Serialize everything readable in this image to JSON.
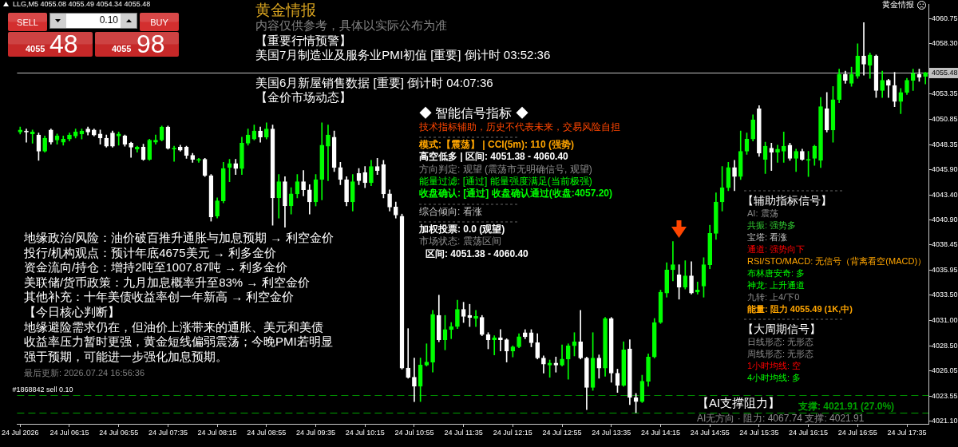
{
  "chart_data": {
    "type": "candlestick",
    "title": "黄金情报",
    "subtitle": "内容仅供参考，具体以实际公布为准",
    "categories": [
      "24 Jul 2026",
      null,
      null,
      null,
      null,
      null,
      null,
      null,
      "24 Jul 06:15",
      null,
      null,
      null,
      null,
      null,
      null,
      null,
      "24 Jul 06:55",
      null,
      null,
      null,
      null,
      null,
      null,
      null,
      "24 Jul 07:35",
      null,
      null,
      null,
      null,
      null,
      null,
      null,
      "24 Jul 08:15",
      null,
      null,
      null,
      null,
      null,
      null,
      null,
      "24 Jul 08:55",
      null,
      null,
      null,
      null,
      null,
      null,
      null,
      "24 Jul 09:35",
      null,
      null,
      null,
      null,
      null,
      null,
      null,
      "24 Jul 10:15",
      null,
      null,
      null,
      null,
      null,
      null,
      null,
      "24 Jul 10:55",
      null,
      null,
      null,
      null,
      null,
      null,
      null,
      "24 Jul 11:35",
      null,
      null,
      null,
      null,
      null,
      null,
      null,
      "24 Jul 12:15",
      null,
      null,
      null,
      null,
      null,
      null,
      null,
      "24 Jul 12:55",
      null,
      null,
      null,
      null,
      null,
      null,
      null,
      "24 Jul 13:35",
      null,
      null,
      null,
      null,
      null,
      null,
      null,
      "24 Jul 14:15",
      null,
      null,
      null,
      null,
      null,
      null,
      null,
      "24 Jul 14:55",
      null,
      null,
      null,
      null,
      null,
      null,
      null,
      "24 Jul 15:35",
      null,
      null,
      null,
      null,
      null,
      null,
      null,
      "24 Jul 16:15",
      null,
      null,
      null,
      null,
      null,
      null,
      null,
      "24 Jul 16:55",
      null,
      null,
      null,
      null,
      null,
      null,
      null,
      "24 Jul 17:35",
      null,
      null,
      null
    ],
    "ohlc": [
      [
        4049.6,
        4050.1,
        4049.4,
        4049.8
      ],
      [
        4049.7,
        4049.9,
        4048.6,
        4049.6
      ],
      [
        4049.4,
        4049.8,
        4048.5,
        4049.6
      ],
      [
        4049.3,
        4049.5,
        4046.8,
        4047.7
      ],
      [
        4047.7,
        4049.2,
        4047.6,
        4049.0
      ],
      [
        4049.8,
        4049.9,
        4048.4,
        4048.6
      ],
      [
        4048.8,
        4049.4,
        4048.4,
        4049.2
      ],
      [
        4048.6,
        4049.2,
        4048.3,
        4048.9
      ],
      [
        4048.9,
        4049.5,
        4048.7,
        4049.3
      ],
      [
        4049.2,
        4049.9,
        4049.0,
        4049.6
      ],
      [
        4049.4,
        4049.9,
        4048.9,
        4049.7
      ],
      [
        4049.9,
        4050.1,
        4049.3,
        4049.6
      ],
      [
        4049.8,
        4049.9,
        4049.2,
        4049.3
      ],
      [
        4049.4,
        4049.8,
        4048.4,
        4049.0
      ],
      [
        4049.0,
        4049.3,
        4048.1,
        4048.2
      ],
      [
        4049.5,
        4049.7,
        4048.1,
        4048.2
      ],
      [
        4049.2,
        4049.6,
        4048.3,
        4049.4
      ],
      [
        4049.2,
        4049.3,
        4048.2,
        4048.4
      ],
      [
        4048.5,
        4048.6,
        4047.1,
        4048.1
      ],
      [
        4047.9,
        4048.2,
        4047.6,
        4048.1
      ],
      [
        4048.1,
        4048.4,
        4046.8,
        4046.9
      ],
      [
        4046.9,
        4048.9,
        4046.8,
        4048.8
      ],
      [
        4048.6,
        4049.3,
        4048.4,
        4048.8
      ],
      [
        4048.8,
        4050.2,
        4048.7,
        4050.1
      ],
      [
        4050.1,
        4050.2,
        4047.9,
        4048.0
      ],
      [
        4047.9,
        4048.2,
        4046.7,
        4048.0
      ],
      [
        4048.1,
        4048.3,
        4047.7,
        4047.8
      ],
      [
        4048.1,
        4048.2,
        4047.0,
        4047.3
      ],
      [
        4047.3,
        4047.5,
        4046.6,
        4046.9
      ],
      [
        4046.8,
        4047.0,
        4046.6,
        4046.9
      ],
      [
        4046.9,
        4047.0,
        4045.2,
        4045.3
      ],
      [
        4045.3,
        4045.4,
        4040.8,
        4041.2
      ],
      [
        4041.3,
        4043.1,
        4041.1,
        4042.8
      ],
      [
        4042.8,
        4046.6,
        4042.6,
        4046.0
      ],
      [
        4046.1,
        4046.9,
        4044.7,
        4046.5
      ],
      [
        4046.5,
        4046.9,
        4045.4,
        4046.0
      ],
      [
        4046.0,
        4049.1,
        4045.4,
        4048.5
      ],
      [
        4048.5,
        4049.9,
        4048.3,
        4049.3
      ],
      [
        4048.9,
        4050.3,
        4048.8,
        4049.7
      ],
      [
        4049.7,
        4050.1,
        4048.6,
        4049.1
      ],
      [
        4049.1,
        4050.5,
        4048.9,
        4049.9
      ],
      [
        4049.9,
        4050.3,
        4040.4,
        4043.1
      ],
      [
        4043.1,
        4045.4,
        4041.1,
        4044.7
      ],
      [
        4044.7,
        4045.2,
        4040.2,
        4042.3
      ],
      [
        4042.3,
        4044.1,
        4041.5,
        4043.5
      ],
      [
        4043.5,
        4045.4,
        4043.1,
        4044.7
      ],
      [
        4044.7,
        4045.8,
        4043.3,
        4043.9
      ],
      [
        4043.9,
        4044.4,
        4041.5,
        4042.7
      ],
      [
        4042.7,
        4045.4,
        4042.3,
        4044.9
      ],
      [
        4044.9,
        4050.5,
        4042.9,
        4048.3
      ],
      [
        4048.2,
        4050.3,
        4044.8,
        4049.3
      ],
      [
        4049.1,
        4049.7,
        4045.7,
        4046.1
      ],
      [
        4046.1,
        4046.6,
        4044.4,
        4044.9
      ],
      [
        4044.9,
        4045.2,
        4042.3,
        4042.7
      ],
      [
        4042.7,
        4045.4,
        4041.8,
        4044.7
      ],
      [
        4045.5,
        4046.0,
        4044.4,
        4044.8
      ],
      [
        4045.6,
        4046.2,
        4044.1,
        4044.6
      ],
      [
        4044.6,
        4046.8,
        4044.3,
        4046.2
      ],
      [
        4046.2,
        4047.0,
        4045.4,
        4045.8
      ],
      [
        4046.4,
        4046.8,
        4043.1,
        4043.5
      ],
      [
        4043.5,
        4043.9,
        4041.8,
        4042.2
      ],
      [
        4042.2,
        4042.7,
        4041.1,
        4041.4
      ],
      [
        4041.3,
        4041.5,
        4026.2,
        4026.3
      ],
      [
        4026.3,
        4030.2,
        4025.3,
        4025.4
      ],
      [
        4025.4,
        4027.3,
        4023.0,
        4024.5
      ],
      [
        4024.5,
        4027.3,
        4023.0,
        4026.6
      ],
      [
        4026.6,
        4028.7,
        4026.5,
        4026.9
      ],
      [
        4026.9,
        4032.0,
        4025.9,
        4031.6
      ],
      [
        4031.5,
        4033.5,
        4028.9,
        4029.1
      ],
      [
        4029.1,
        4031.5,
        4028.1,
        4030.1
      ],
      [
        4030.1,
        4030.8,
        4029.2,
        4030.4
      ],
      [
        4030.4,
        4033.0,
        4030.2,
        4032.1
      ],
      [
        4032.1,
        4032.8,
        4030.8,
        4031.4
      ],
      [
        4031.5,
        4032.6,
        4030.4,
        4031.3
      ],
      [
        4031.2,
        4032.0,
        4030.4,
        4031.4
      ],
      [
        4031.3,
        4031.5,
        4029.5,
        4029.6
      ],
      [
        4029.6,
        4029.8,
        4028.2,
        4029.1
      ],
      [
        4029.1,
        4029.5,
        4027.6,
        4029.3
      ],
      [
        4029.3,
        4030.1,
        4028.0,
        4029.1
      ],
      [
        4029.1,
        4029.2,
        4026.9,
        4028.0
      ],
      [
        4028.0,
        4028.5,
        4027.4,
        4028.4
      ],
      [
        4028.4,
        4029.7,
        4028.3,
        4029.4
      ],
      [
        4029.8,
        4030.1,
        4029.2,
        4029.4
      ],
      [
        4029.8,
        4030.1,
        4028.4,
        4028.8
      ],
      [
        4028.8,
        4029.7,
        4027.2,
        4027.3
      ],
      [
        4027.3,
        4027.5,
        4025.8,
        4026.7
      ],
      [
        4026.6,
        4027.1,
        4025.4,
        4026.8
      ],
      [
        4026.8,
        4027.4,
        4025.9,
        4026.6
      ],
      [
        4026.6,
        4028.6,
        4026.5,
        4027.2
      ],
      [
        4027.2,
        4028.7,
        4025.2,
        4028.5
      ],
      [
        4028.5,
        4029.8,
        4027.5,
        4028.9
      ],
      [
        4028.9,
        4032.0,
        4027.2,
        4027.3
      ],
      [
        4027.3,
        4027.4,
        4022.2,
        4024.4
      ],
      [
        4024.4,
        4029.8,
        4024.1,
        4027.3
      ],
      [
        4027.3,
        4027.6,
        4025.3,
        4026.3
      ],
      [
        4026.3,
        4031.3,
        4025.5,
        4031.2
      ],
      [
        4031.2,
        4031.3,
        4024.9,
        4025.8
      ],
      [
        4025.8,
        4026.2,
        4023.9,
        4024.6
      ],
      [
        4024.6,
        4028.9,
        4024.5,
        4028.1
      ],
      [
        4028.2,
        4029.1,
        4022.7,
        4023.4
      ],
      [
        4023.4,
        4023.8,
        4021.9,
        4023.0
      ],
      [
        4023.0,
        4025.6,
        4022.9,
        4025.0
      ],
      [
        4025.0,
        4027.7,
        4024.5,
        4027.4
      ],
      [
        4027.4,
        4031.2,
        4027.3,
        4030.8
      ],
      [
        4030.8,
        4034.0,
        4030.7,
        4033.8
      ],
      [
        4033.7,
        4036.7,
        4033.3,
        4036.0
      ],
      [
        4036.0,
        4038.8,
        4034.9,
        4036.5
      ],
      [
        4035.5,
        4036.5,
        4033.1,
        4034.3
      ],
      [
        4034.3,
        4036.9,
        4034.1,
        4035.4
      ],
      [
        4035.4,
        4036.8,
        4033.6,
        4033.7
      ],
      [
        4033.8,
        4034.8,
        4033.6,
        4034.0
      ],
      [
        4034.4,
        4037.2,
        4033.3,
        4036.5
      ],
      [
        4036.5,
        4040.4,
        4036.1,
        4039.6
      ],
      [
        4039.6,
        4043.6,
        4039.0,
        4042.7
      ],
      [
        4042.7,
        4046.2,
        4041.8,
        4044.1
      ],
      [
        4044.1,
        4046.6,
        4043.8,
        4046.1
      ],
      [
        4046.1,
        4046.8,
        4043.8,
        4045.2
      ],
      [
        4045.2,
        4049.7,
        4044.9,
        4047.7
      ],
      [
        4047.7,
        4049.5,
        4047.4,
        4048.9
      ],
      [
        4048.9,
        4051.3,
        4048.7,
        4050.8
      ],
      [
        4051.9,
        4052.2,
        4047.2,
        4047.5
      ],
      [
        4046.9,
        4048.6,
        4045.5,
        4048.2
      ],
      [
        4048.0,
        4048.5,
        4045.8,
        4047.6
      ],
      [
        4047.6,
        4048.3,
        4046.6,
        4047.9
      ],
      [
        4047.7,
        4049.6,
        4046.6,
        4048.2
      ],
      [
        4048.3,
        4048.5,
        4046.8,
        4047.0
      ],
      [
        4047.0,
        4047.9,
        4045.7,
        4047.7
      ],
      [
        4047.7,
        4047.9,
        4046.8,
        4046.9
      ],
      [
        4046.8,
        4047.7,
        4045.2,
        4046.9
      ],
      [
        4047.0,
        4048.3,
        4046.3,
        4048.2
      ],
      [
        4046.8,
        4053.0,
        4046.1,
        4052.1
      ],
      [
        4051.9,
        4053.5,
        4049.6,
        4049.8
      ],
      [
        4049.8,
        4054.1,
        4048.6,
        4052.8
      ],
      [
        4052.8,
        4055.8,
        4052.5,
        4055.3
      ],
      [
        4055.3,
        4055.6,
        4054.4,
        4054.7
      ],
      [
        4054.4,
        4056.0,
        4054.1,
        4055.3
      ],
      [
        4055.1,
        4058.3,
        4054.9,
        4057.1
      ],
      [
        4057.1,
        4060.4,
        4055.2,
        4056.3
      ],
      [
        4056.2,
        4057.4,
        4054.9,
        4057.2
      ],
      [
        4057.1,
        4057.2,
        4053.0,
        4053.7
      ],
      [
        4053.7,
        4055.6,
        4053.0,
        4054.7
      ],
      [
        4054.7,
        4054.8,
        4053.0,
        4054.2
      ],
      [
        4054.2,
        4055.5,
        4052.1,
        4052.6
      ],
      [
        4052.6,
        4053.9,
        4051.4,
        4053.5
      ],
      [
        4053.5,
        4054.9,
        4053.3,
        4054.7
      ],
      [
        4054.7,
        4055.8,
        4053.7,
        4055.4
      ],
      [
        4055.3,
        4055.8,
        4054.6,
        4055.0
      ],
      [
        4055.08,
        4055.49,
        4054.34,
        4055.48
      ]
    ],
    "colors": [
      "#00ff00",
      "#ffffff",
      "#00ff00",
      "#ffffff",
      "#00ff00",
      "#ffffff",
      "#00ff00",
      "#00ff00",
      "#00ff00",
      "#00ff00",
      "#00ff00",
      "#ffffff",
      "#ffffff",
      "#ffffff",
      "#ffffff",
      "#ffffff",
      "#00ff00",
      "#ffffff",
      "#ffffff",
      "#00ff00",
      "#ffffff",
      "#00ff00",
      "#00ff00",
      "#00ff00",
      "#ffffff",
      "#00ff00",
      "#ffffff",
      "#ffffff",
      "#ffffff",
      "#00ff00",
      "#ffffff",
      "#ffffff",
      "#00ff00",
      "#00ff00",
      "#00ff00",
      "#ffffff",
      "#00ff00",
      "#00ff00",
      "#00ff00",
      "#ffffff",
      "#00ff00",
      "#ffffff",
      "#00ff00",
      "#ffffff",
      "#00ff00",
      "#00ff00",
      "#ffffff",
      "#ffffff",
      "#00ff00",
      "#00ff00",
      "#00ff00",
      "#ffffff",
      "#ffffff",
      "#ffffff",
      "#00ff00",
      "#ffffff",
      "#ffffff",
      "#00ff00",
      "#ffffff",
      "#ffffff",
      "#ffffff",
      "#ffffff",
      "#ffffff",
      "#ffffff",
      "#ffffff",
      "#00ff00",
      "#00ff00",
      "#00ff00",
      "#ffffff",
      "#00ff00",
      "#00ff00",
      "#00ff00",
      "#ffffff",
      "#ffffff",
      "#00ff00",
      "#ffffff",
      "#ffffff",
      "#00ff00",
      "#ffffff",
      "#ffffff",
      "#00ff00",
      "#00ff00",
      "#ffffff",
      "#ffffff",
      "#ffffff",
      "#ffffff",
      "#00ff00",
      "#ffffff",
      "#00ff00",
      "#00ff00",
      "#00ff00",
      "#ffffff",
      "#ffffff",
      "#00ff00",
      "#ffffff",
      "#00ff00",
      "#ffffff",
      "#ffffff",
      "#00ff00",
      "#ffffff",
      "#ffffff",
      "#00ff00",
      "#00ff00",
      "#00ff00",
      "#00ff00",
      "#00ff00",
      "#00ff00",
      "#ffffff",
      "#00ff00",
      "#ffffff",
      "#00ff00",
      "#00ff00",
      "#00ff00",
      "#00ff00",
      "#00ff00",
      "#00ff00",
      "#ffffff",
      "#00ff00",
      "#00ff00",
      "#00ff00",
      "#ffffff",
      "#00ff00",
      "#ffffff",
      "#00ff00",
      "#00ff00",
      "#ffffff",
      "#00ff00",
      "#ffffff",
      "#00ff00",
      "#00ff00",
      "#00ff00",
      "#ffffff",
      "#00ff00",
      "#00ff00",
      "#ffffff",
      "#00ff00",
      "#00ff00",
      "#ffffff",
      "#00ff00",
      "#ffffff",
      "#00ff00",
      "#ffffff",
      "#ffffff",
      "#00ff00",
      "#00ff00",
      "#00ff00",
      "#ffffff",
      "#00ff00"
    ],
    "ylim": [
      4020.8,
      4062.2
    ],
    "yticks": [
      4060.75,
      {
        "value": 4058.3,
        "label": "4058.30"
      },
      4053.35,
      4050.85,
      4048.35,
      {
        "value": 4045.9,
        "label": "4045.90"
      },
      {
        "value": 4043.4,
        "label": "4043.40"
      },
      {
        "value": 4040.9,
        "label": "4040.90"
      },
      4038.45,
      4035.95,
      {
        "value": 4033.5,
        "label": "4033.50"
      },
      {
        "value": 4031.0,
        "label": "4031.00"
      },
      {
        "value": 4028.5,
        "label": "4028.50"
      },
      4026.05,
      4023.55,
      {
        "value": 4021.1,
        "label": "4021.10"
      }
    ],
    "ref_lines": [
      {
        "axis": "y",
        "value": 4055.48,
        "label": "4055.48",
        "color": "#c0c0c0",
        "line_style": "solid"
      },
      {
        "axis": "y",
        "value": 4023.6,
        "label": "#1868842 sell 0.10",
        "color": "#008c00",
        "line_style": "dashed"
      },
      {
        "axis": "y",
        "value": 4021.91,
        "label": "支撑: 4021.91 (27.0%)",
        "color": "#00a000",
        "line_style": "dashed"
      }
    ],
    "annotations": [
      "LLG,M5 4055.08 4055.49 4054.34 4055.48",
      "SELL",
      "0.10",
      "BUY",
      "4055",
      "48",
      "4055",
      "98",
      "黄金情报",
      "【重要行情预警】",
      "美国7月制造业及服务业PMI初值 [重要] 倒计时 03:52:36",
      "美国6月新屋销售数据 [重要] 倒计时 04:07:36",
      "【金价市场动态】",
      "地缘政治/风险：油价破百推升通胀与加息预期 → 利空金价",
      "投行/机构观点：预计年底4675美元 → 利多金价",
      "资金流向/持仓：增持2吨至1007.87吨 → 利多金价",
      "美联储/货币政策：九月加息概率升至83% → 利空金价",
      "其他补充：十年美债收益率创一年新高 → 利空金价",
      "【今日核心判断】",
      "地缘避险需求仍在，但油价上涨带来的通胀、美元和美债",
      "收益率压力暂时更强，黄金短线偏弱震荡；今晚PMI若明显",
      "强于预期，可能进一步强化加息预期。",
      "最后更新: 2026.07.24 16:56:36",
      "◆ 智能信号指标 ◆",
      "技术指标辅助，历史不代表未来，交易风险自担",
      "模式:【震荡】 | CCI(5m): 110 (强势)",
      "高空低多 | 区间: 4051.38 - 4060.40",
      "方向判定: 观望 (震荡市无明确信号, 观望)",
      "能量过滤: [通过] 能量强度满足(当前极强)",
      "收盘确认: [通过] 收盘确认通过(收盘:4057.20)",
      "综合倾向: 看涨",
      "加权投票: 0.0 (观望)",
      "市场状态: 震荡区间",
      "区间: 4051.38 - 4060.40",
      "【辅助指标信号】",
      "AI: 震荡",
      "共振: 强势多",
      "宝塔: 看涨",
      "通道: 强势向下",
      "RSI/STO/MACD: 无信号（背离看空(MACD)）",
      "布林唐安奇: 多",
      "神龙: 上升通道",
      "九转: 上4/下0",
      "能量: 阻力 4055.49 (1K,中)",
      "【大周期信号】",
      "日线形态: 无形态",
      "周线形态: 无形态",
      "1小时均线: 空",
      "4小时均线: 多",
      "【AI支撑阻力】",
      "AI无方向 · 阻力: 4067.74 支撑: 4021.91"
    ]
  }
}
